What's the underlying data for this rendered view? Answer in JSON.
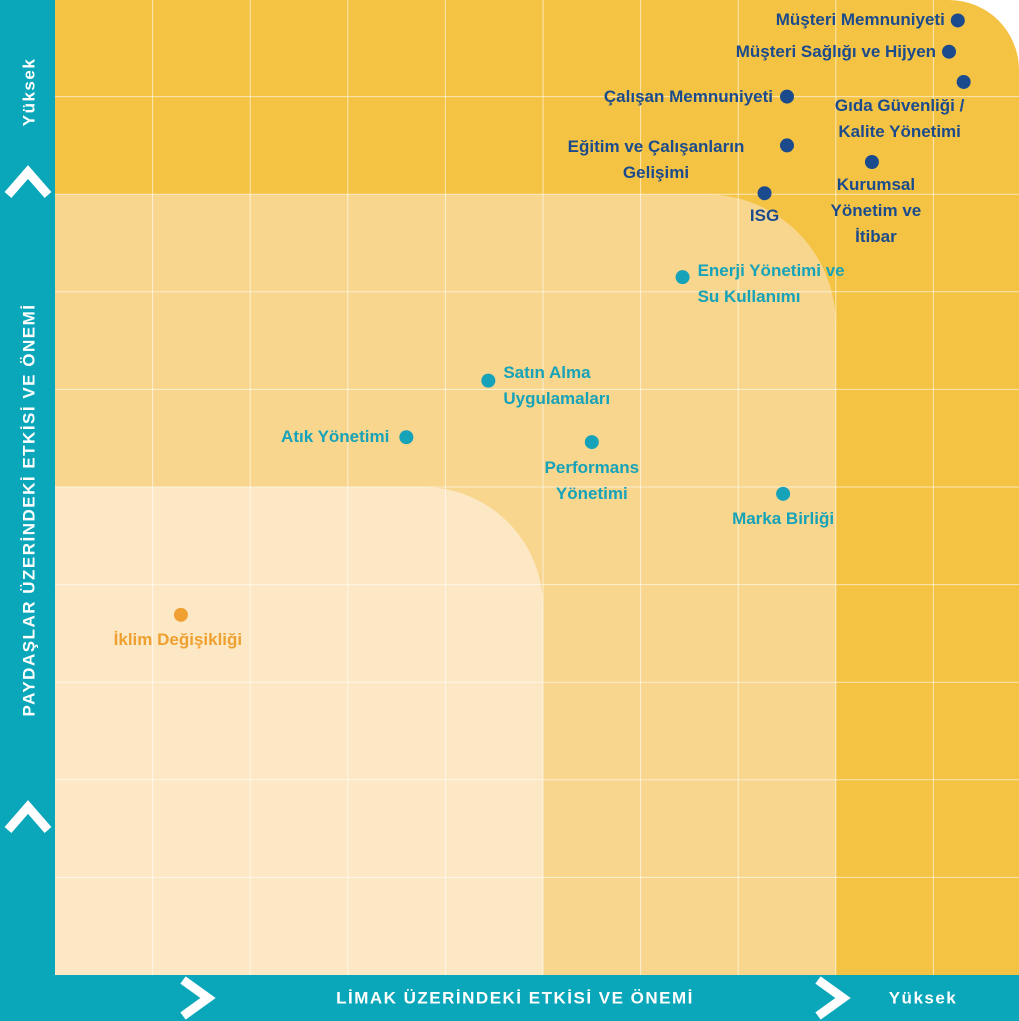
{
  "chart_data": {
    "type": "scatter",
    "xlabel": "LİMAK ÜZERİNDEKİ ETKİSİ VE ÖNEMİ",
    "ylabel": "PAYDAŞLAR ÜZERİNDEKİ ETKİSİ VE ÖNEMİ",
    "x_high_label": "Yüksek",
    "y_high_label": "Yüksek",
    "xlim": [
      0,
      10
    ],
    "ylim": [
      0,
      10
    ],
    "xticks": [
      1,
      2,
      3,
      4,
      5,
      6,
      7,
      8,
      9
    ],
    "yticks": [
      1,
      2,
      3,
      4,
      5,
      6,
      7,
      8,
      9
    ],
    "grid": true,
    "background_color": "#f5c344",
    "zones": [
      {
        "xmax": 8,
        "ymax": 8,
        "color": "#f8d68e"
      },
      {
        "xmax": 5,
        "ymax": 5,
        "color": "#fce8c4"
      }
    ],
    "labels": [
      "Müşteri Memnuniyeti",
      "Müşteri Sağlığı ve Hijyen",
      "Gıda Güvenliği / Kalite Yönetimi",
      "Çalışan Memnuniyeti",
      "Eğitim ve Çalışanların Gelişimi",
      "Kurumsal Yönetim ve İtibar",
      "ISG",
      "Enerji Yönetimi ve Su Kullanımı",
      "Satın Alma Uygulamaları",
      "Atık Yönetimi",
      "Performans Yönetimi",
      "Marka Birliği",
      "İklim Değişikliği"
    ],
    "x": [
      9.25,
      9.16,
      9.31,
      7.5,
      7.5,
      8.37,
      7.27,
      6.43,
      4.44,
      3.6,
      5.5,
      7.46,
      1.29
    ],
    "y": [
      9.78,
      9.46,
      9.15,
      9.0,
      8.5,
      8.33,
      8.01,
      7.15,
      6.09,
      5.51,
      5.46,
      4.93,
      3.69
    ],
    "colors": [
      "#1b4b8c",
      "#1b4b8c",
      "#1b4b8c",
      "#1b4b8c",
      "#1b4b8c",
      "#1b4b8c",
      "#1b4b8c",
      "#16a2b8",
      "#16a2b8",
      "#16a2b8",
      "#16a2b8",
      "#16a2b8",
      "#f0a030"
    ]
  }
}
